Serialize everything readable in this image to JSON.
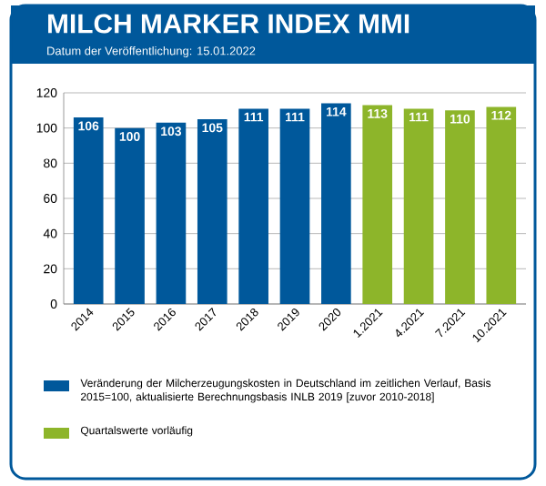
{
  "chart_data": {
    "type": "bar",
    "title": "MILCH MARKER INDEX MMI",
    "subtitle": "Datum der Veröffentlichung: 15.01.2022",
    "categories": [
      "2014",
      "2015",
      "2016",
      "2017",
      "2018",
      "2019",
      "2020",
      "1.2021",
      "4.2021",
      "7.2021",
      "10.2021"
    ],
    "series": [
      {
        "name": "Veränderung der Milcherzeugungskosten in Deutschland im zeitlichen Verlauf, Basis 2015=100, aktualisierte Berechnungsbasis INLB 2019 [zuvor 2010-2018]",
        "color": "#00589b",
        "values": [
          106,
          100,
          103,
          105,
          111,
          111,
          114,
          null,
          null,
          null,
          null
        ]
      },
      {
        "name": "Quartalswerte vorläufig",
        "color": "#8db52a",
        "values": [
          null,
          null,
          null,
          null,
          null,
          null,
          null,
          113,
          111,
          110,
          112
        ]
      }
    ],
    "ylim": [
      0,
      120
    ],
    "yticks": [
      0,
      20,
      40,
      60,
      80,
      100,
      120
    ],
    "grid": "y",
    "legend": "bottom",
    "data_labels": true
  }
}
